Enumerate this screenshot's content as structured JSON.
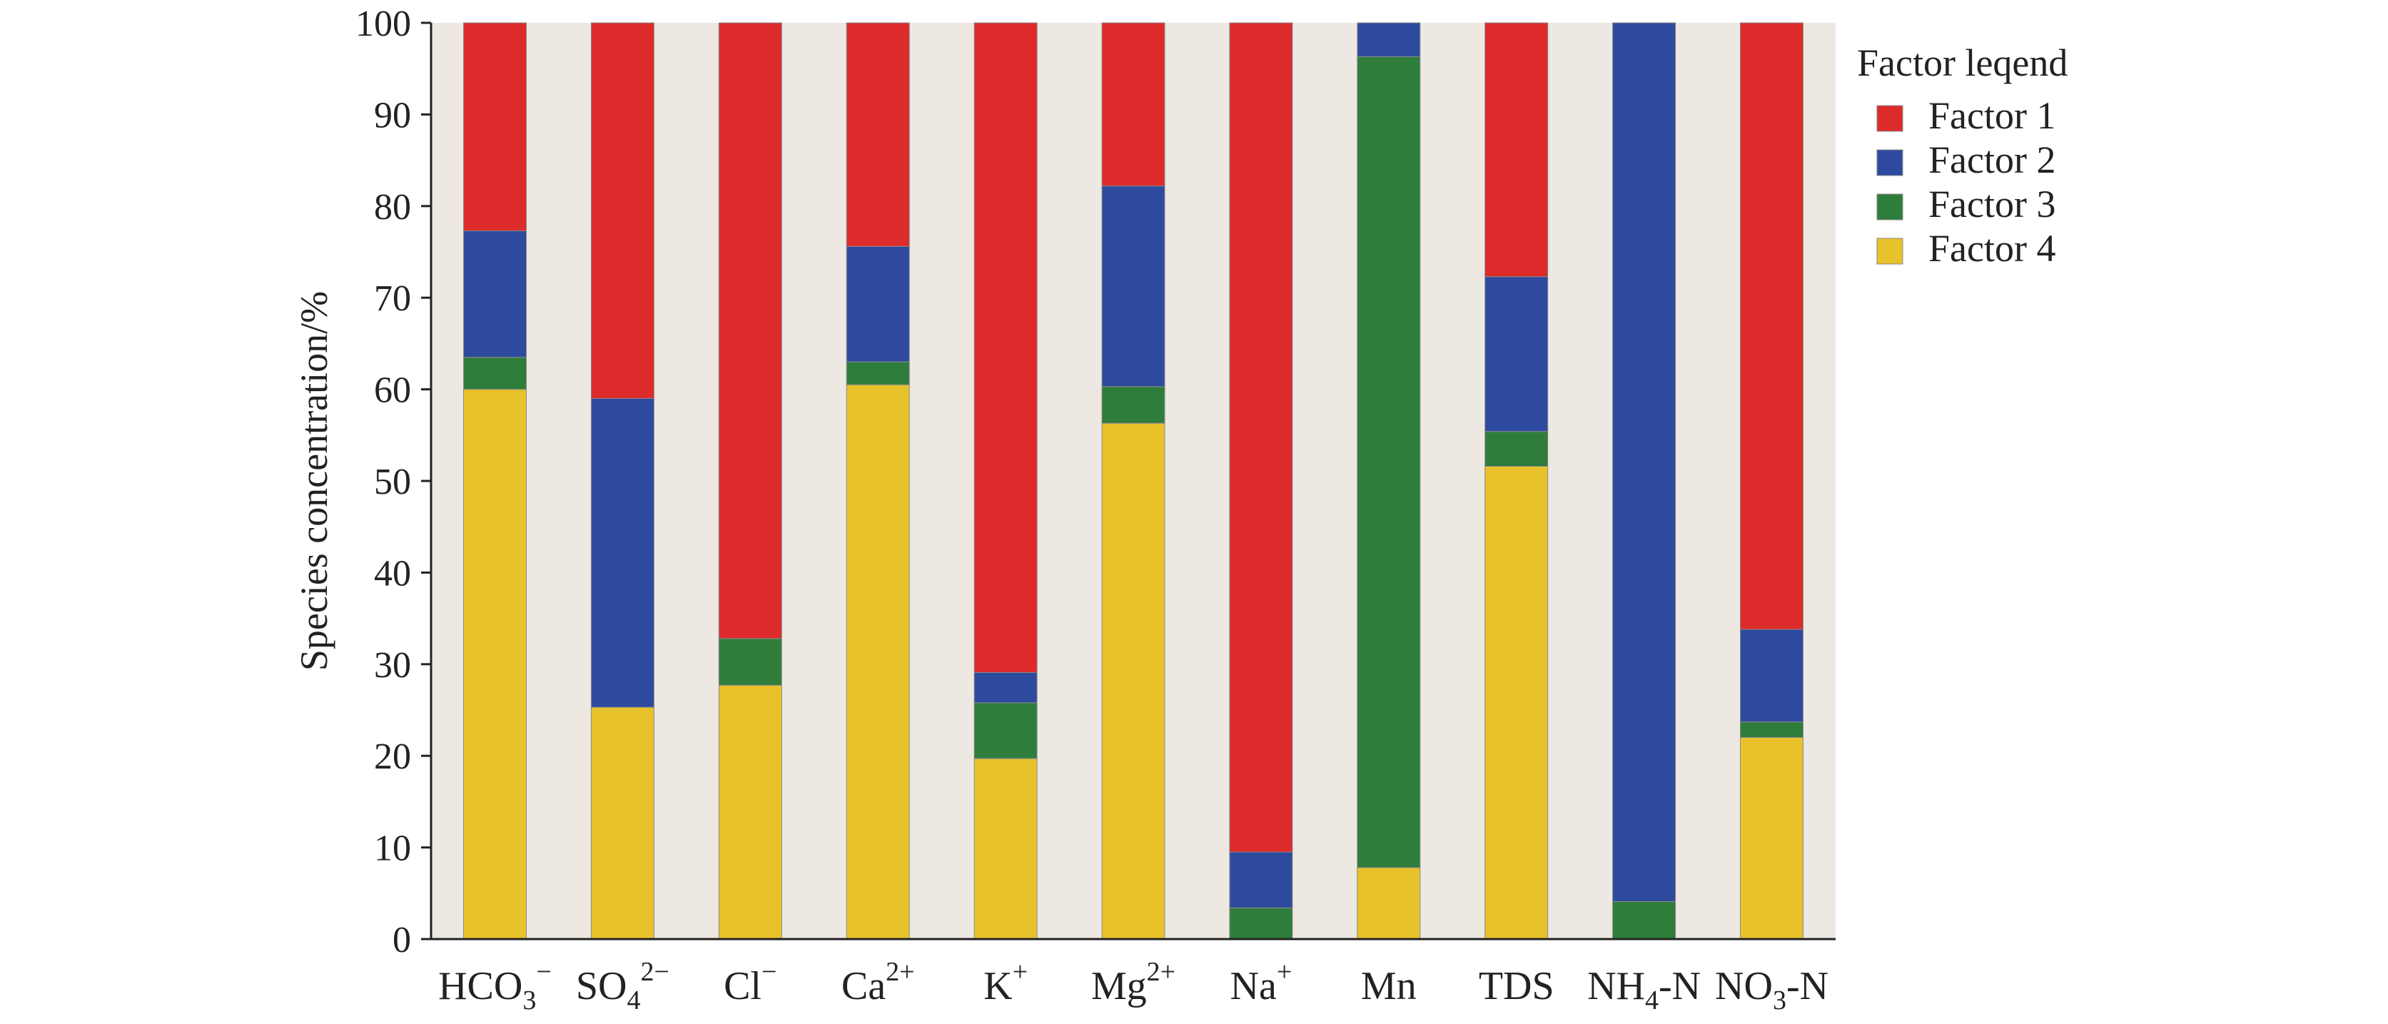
{
  "chart_data": {
    "type": "bar",
    "stacked": true,
    "categories": [
      "HCO3−",
      "SO42−",
      "Cl−",
      "Ca2+",
      "K+",
      "Mg2+",
      "Na+",
      "Mn",
      "TDS",
      "NH4-N",
      "NO3-N"
    ],
    "category_labels": [
      {
        "base": "HCO",
        "sub": "3",
        "sup": "−"
      },
      {
        "base": "SO",
        "sub": "4",
        "sup": "2−"
      },
      {
        "base": "Cl",
        "sub": "",
        "sup": "−"
      },
      {
        "base": "Ca",
        "sub": "",
        "sup": "2+"
      },
      {
        "base": "K",
        "sub": "",
        "sup": "+"
      },
      {
        "base": "Mg",
        "sub": "",
        "sup": "2+"
      },
      {
        "base": "Na",
        "sub": "",
        "sup": "+"
      },
      {
        "base": "Mn",
        "sub": "",
        "sup": ""
      },
      {
        "base": "TDS",
        "sub": "",
        "sup": ""
      },
      {
        "base": "NH",
        "sub": "4",
        "sup": "",
        "tail": "-N"
      },
      {
        "base": "NO",
        "sub": "3",
        "sup": "",
        "tail": "-N"
      }
    ],
    "series": [
      {
        "name": "Factor 4",
        "color": "#e8c22a",
        "values": [
          60.0,
          25.3,
          27.7,
          60.5,
          19.7,
          56.3,
          0.0,
          7.8,
          51.6,
          0.0,
          22.0
        ]
      },
      {
        "name": "Factor 3",
        "color": "#2f7d3b",
        "values": [
          3.5,
          0.0,
          5.1,
          2.5,
          6.1,
          4.0,
          3.4,
          88.5,
          3.8,
          4.1,
          1.7
        ]
      },
      {
        "name": "Factor 2",
        "color": "#2e4a9e",
        "values": [
          13.8,
          33.7,
          0.0,
          12.6,
          3.3,
          21.9,
          6.1,
          3.7,
          16.9,
          95.9,
          10.1
        ]
      },
      {
        "name": "Factor 1",
        "color": "#dd2b2b",
        "values": [
          22.7,
          41.0,
          67.2,
          24.4,
          70.9,
          17.8,
          90.5,
          0.0,
          27.7,
          0.0,
          66.2
        ]
      }
    ],
    "ylabel": "Species concentration/%",
    "xlabel": "",
    "ylim": [
      0,
      100
    ],
    "yticks": [
      0,
      10,
      20,
      30,
      40,
      50,
      60,
      70,
      80,
      90,
      100
    ],
    "legend": {
      "title": "Factor leqend",
      "position": "right",
      "entries": [
        "Factor 1",
        "Factor 2",
        "Factor 3",
        "Factor 4"
      ]
    },
    "plot_background": "#ede8e2",
    "grid": false
  }
}
